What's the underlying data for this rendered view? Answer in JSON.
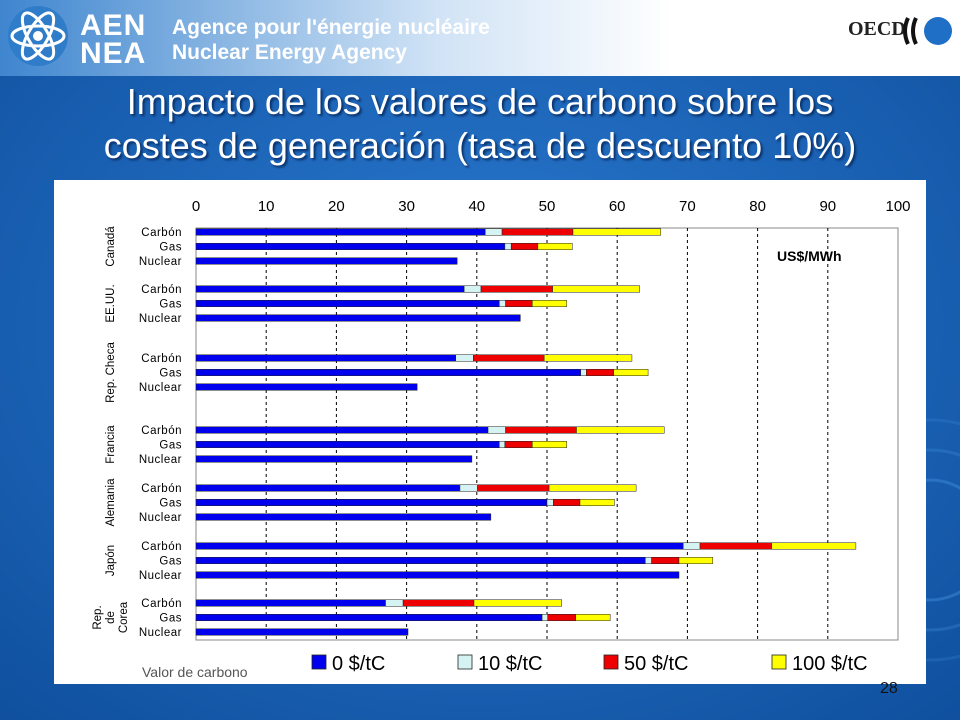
{
  "header": {
    "brand_top": "AEN",
    "brand_bottom": "NEA",
    "agency_fr": "Agence pour l'énergie nucléaire",
    "agency_en": "Nuclear Energy Agency",
    "oecd": "OECD"
  },
  "slide": {
    "title_line1": "Impacto de los valores de carbono sobre los",
    "title_line2": "costes de generación (tasa de descuento 10%)",
    "page_number": "28"
  },
  "chart_data": {
    "type": "bar",
    "orientation": "horizontal",
    "stacked": true,
    "unit_label": "US$/MWh",
    "legend_title": "Valor de carbono",
    "legend_position": "bottom",
    "xlim": [
      0,
      100
    ],
    "x_ticks": [
      0,
      10,
      20,
      30,
      40,
      50,
      60,
      70,
      80,
      90,
      100
    ],
    "grid": true,
    "colors": [
      "#0000ee",
      "#d6f3f3",
      "#ee0000",
      "#ffff00"
    ],
    "series": [
      {
        "name": "0 $/tC"
      },
      {
        "name": "10 $/tC"
      },
      {
        "name": "50 $/tC"
      },
      {
        "name": "100 $/tC"
      }
    ],
    "groups": [
      {
        "label": [
          "Canadá"
        ],
        "rows": [
          {
            "label": "Carbón",
            "totals": [
              41.2,
              43.6,
              53.7,
              66.2
            ]
          },
          {
            "label": "Gas",
            "totals": [
              44.0,
              44.9,
              48.7,
              53.6
            ]
          },
          {
            "label": "Nuclear",
            "totals": [
              37.2,
              37.2,
              37.2,
              37.2
            ]
          }
        ]
      },
      {
        "label": [
          "EE.UU."
        ],
        "rows": [
          {
            "label": "Carbón",
            "totals": [
              38.2,
              40.6,
              50.8,
              63.2
            ]
          },
          {
            "label": "Gas",
            "totals": [
              43.2,
              44.1,
              47.9,
              52.8
            ]
          },
          {
            "label": "Nuclear",
            "totals": [
              46.2,
              46.2,
              46.2,
              46.2
            ]
          }
        ]
      },
      {
        "label": [
          "Rep. Checa"
        ],
        "rows": [
          {
            "label": "Carbón",
            "totals": [
              37.0,
              39.5,
              49.6,
              62.1
            ]
          },
          {
            "label": "Gas",
            "totals": [
              54.8,
              55.6,
              59.5,
              64.4
            ]
          },
          {
            "label": "Nuclear",
            "totals": [
              31.5,
              31.5,
              31.5,
              31.5
            ]
          }
        ]
      },
      {
        "label": [
          "Francia"
        ],
        "rows": [
          {
            "label": "Carbón",
            "totals": [
              41.6,
              44.1,
              54.2,
              66.7
            ]
          },
          {
            "label": "Gas",
            "totals": [
              43.2,
              44.0,
              47.9,
              52.8
            ]
          },
          {
            "label": "Nuclear",
            "totals": [
              39.3,
              39.3,
              39.3,
              39.3
            ]
          }
        ]
      },
      {
        "label": [
          "Alemania"
        ],
        "rows": [
          {
            "label": "Carbón",
            "totals": [
              37.6,
              40.1,
              50.3,
              62.7
            ]
          },
          {
            "label": "Gas",
            "totals": [
              50.0,
              50.9,
              54.7,
              59.6
            ]
          },
          {
            "label": "Nuclear",
            "totals": [
              42.0,
              42.0,
              42.0,
              42.0
            ]
          }
        ]
      },
      {
        "label": [
          "Japón"
        ],
        "rows": [
          {
            "label": "Carbón",
            "totals": [
              69.4,
              71.8,
              82.0,
              94.0
            ]
          },
          {
            "label": "Gas",
            "totals": [
              64.0,
              64.9,
              68.8,
              73.6
            ]
          },
          {
            "label": "Nuclear",
            "totals": [
              68.8,
              68.8,
              68.8,
              68.8
            ]
          }
        ]
      },
      {
        "label": [
          "Rep.",
          "de",
          "Corea"
        ],
        "rows": [
          {
            "label": "Carbón",
            "totals": [
              27.0,
              29.5,
              39.6,
              52.1
            ]
          },
          {
            "label": "Gas",
            "totals": [
              49.3,
              50.1,
              54.1,
              59.0
            ]
          },
          {
            "label": "Nuclear",
            "totals": [
              30.2,
              30.2,
              30.2,
              30.2
            ]
          }
        ]
      }
    ]
  }
}
